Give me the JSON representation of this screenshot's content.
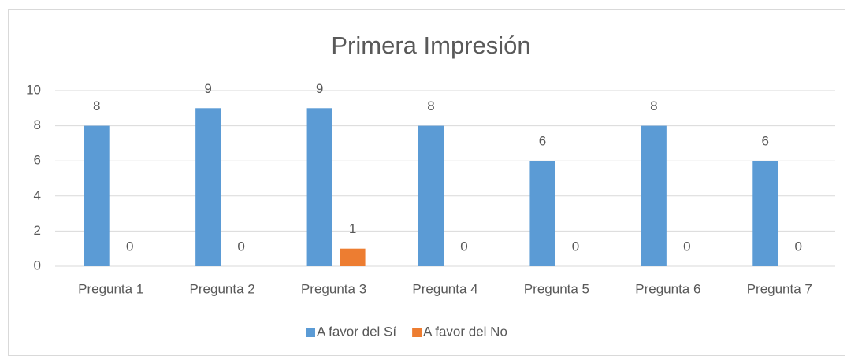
{
  "chart_data": {
    "type": "bar",
    "title": "Primera Impresión",
    "categories": [
      "Pregunta 1",
      "Pregunta 2",
      "Pregunta 3",
      "Pregunta 4",
      "Pregunta 5",
      "Pregunta 6",
      "Pregunta 7"
    ],
    "series": [
      {
        "name": "A favor del Sí",
        "color": "#5b9bd5",
        "values": [
          8,
          9,
          9,
          8,
          6,
          8,
          6
        ]
      },
      {
        "name": "A favor del No",
        "color": "#ed7d31",
        "values": [
          0,
          0,
          1,
          0,
          0,
          0,
          0
        ]
      }
    ],
    "ylim": [
      0,
      10
    ],
    "yticks": [
      0,
      2,
      4,
      6,
      8,
      10
    ],
    "grid": true,
    "legend": "bottom"
  }
}
